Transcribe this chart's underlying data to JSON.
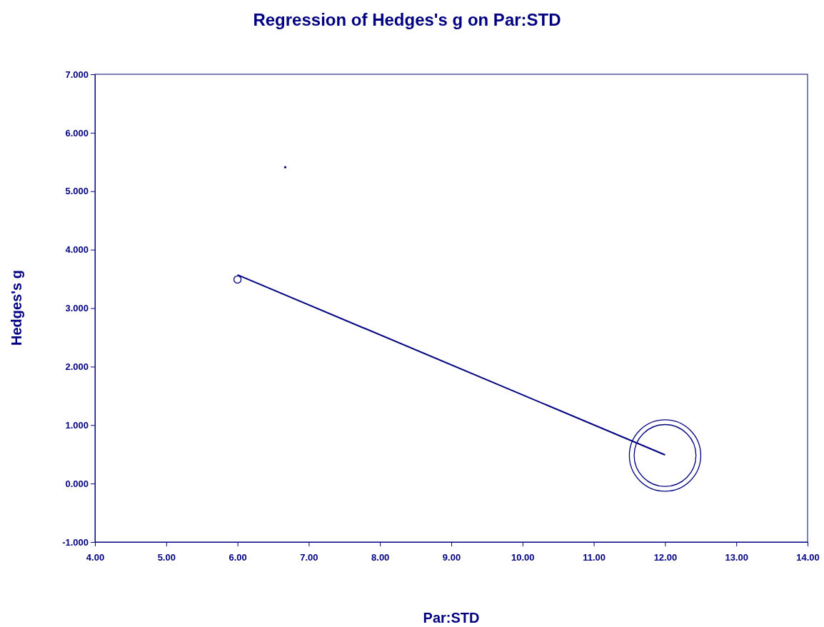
{
  "chart_data": {
    "type": "bubble",
    "title": "Regression of Hedges's g on Par:STD",
    "xlabel": "Par:STD",
    "ylabel": "Hedges's g",
    "xlim": [
      4,
      14
    ],
    "xticks": [
      {
        "value": 4,
        "label": "4.00"
      },
      {
        "value": 5,
        "label": "5.00"
      },
      {
        "value": 6,
        "label": "6.00"
      },
      {
        "value": 7,
        "label": "7.00"
      },
      {
        "value": 8,
        "label": "8.00"
      },
      {
        "value": 9,
        "label": "9.00"
      },
      {
        "value": 10,
        "label": "10.00"
      },
      {
        "value": 11,
        "label": "11.00"
      },
      {
        "value": 12,
        "label": "12.00"
      },
      {
        "value": 13,
        "label": "13.00"
      },
      {
        "value": 14,
        "label": "14.00"
      }
    ],
    "ylim": [
      -1,
      7
    ],
    "yticks": [
      {
        "value": -1,
        "label": "-1.000"
      },
      {
        "value": 0,
        "label": "0.000"
      },
      {
        "value": 1,
        "label": "1.000"
      },
      {
        "value": 2,
        "label": "2.000"
      },
      {
        "value": 3,
        "label": "3.000"
      },
      {
        "value": 4,
        "label": "4.000"
      },
      {
        "value": 5,
        "label": "5.000"
      },
      {
        "value": 6,
        "label": "6.000"
      },
      {
        "value": 7,
        "label": "7.000"
      }
    ],
    "grid": false,
    "series": [
      {
        "color": "#000080",
        "x": [
          6.0,
          6.67,
          12.0,
          12.0
        ],
        "values": [
          3.49,
          5.41,
          0.48,
          0.48
        ],
        "sizes": [
          0.0102,
          0.0004,
          1,
          0.75
        ]
      },
      {
        "type": "line",
        "color": "#000080",
        "x": [
          6.0,
          12.0
        ],
        "values": [
          3.57,
          0.49
        ]
      }
    ]
  }
}
